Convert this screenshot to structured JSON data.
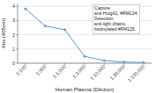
{
  "chart_data": {
    "type": "line",
    "xlabel": "Human Plasma (Dilution)",
    "ylabel": "Abs (405nm)",
    "categories": [
      "1:100",
      "1:300",
      "1:1,000",
      "1:3,000",
      "1:10,000",
      "1:30,000",
      "1:100,000"
    ],
    "values": [
      3.82,
      2.62,
      2.35,
      0.48,
      0.18,
      0.08,
      0.05
    ],
    "color": "#5B9BD5",
    "marker": "circle",
    "ylim": [
      0,
      4.2
    ],
    "yticks": [
      0,
      1,
      2,
      3,
      4
    ],
    "grid": true,
    "annotation": "Capture:\nanti-HuIgA1, #RM124;\nDetection:\nanti-light chains,\nbiotinylated #RM125."
  }
}
